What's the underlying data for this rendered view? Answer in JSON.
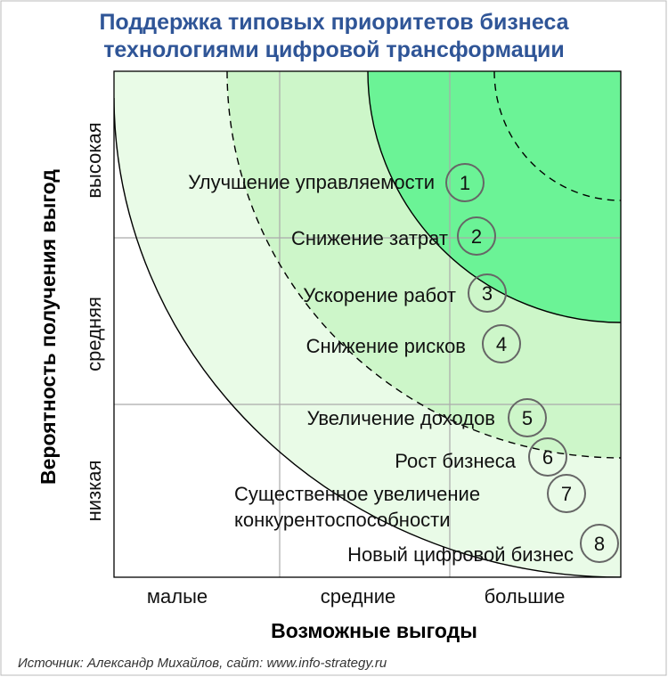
{
  "title": {
    "line1": "Поддержка типовых приоритетов бизнеса",
    "line2": "технологиями цифровой трансформации"
  },
  "axes": {
    "x_title": "Возможные выгоды",
    "y_title": "Вероятность получения выгод",
    "x_categories": [
      "малые",
      "средние",
      "большие"
    ],
    "y_categories": [
      "низкая",
      "средняя",
      "высокая"
    ]
  },
  "items": [
    {
      "num": "1",
      "lines": [
        "Улучшение управляемости"
      ]
    },
    {
      "num": "2",
      "lines": [
        "Снижение затрат"
      ]
    },
    {
      "num": "3",
      "lines": [
        "Ускорение работ"
      ]
    },
    {
      "num": "4",
      "lines": [
        "Снижение рисков"
      ]
    },
    {
      "num": "5",
      "lines": [
        "Увеличение доходов"
      ]
    },
    {
      "num": "6",
      "lines": [
        "Рост бизнеса"
      ]
    },
    {
      "num": "7",
      "lines": [
        "Существенное увеличение",
        "конкурентоспособности"
      ]
    },
    {
      "num": "8",
      "lines": [
        "Новый цифровой бизнес"
      ]
    }
  ],
  "source": "Источник: Александр Михайлов, сайт: www.info-strategy.ru",
  "colors": {
    "title": "#2f5597",
    "zone_outer": "#e9fbe7",
    "zone_mid": "#cdf6c9",
    "zone_inner": "#6bf396",
    "grid": "#aaaaaa"
  }
}
